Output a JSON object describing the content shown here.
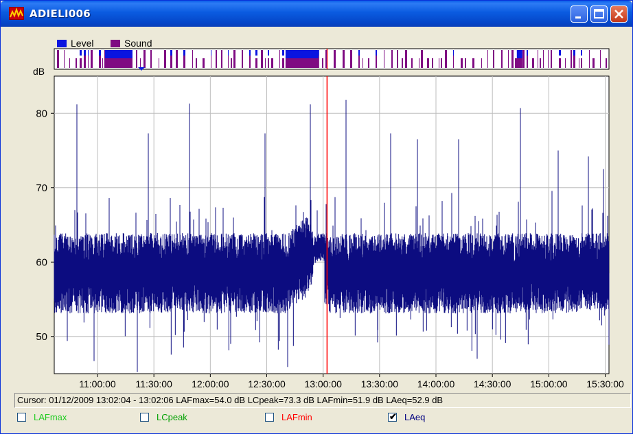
{
  "window": {
    "title": "ADIELI006"
  },
  "legend": {
    "level": "Level",
    "sound": "Sound"
  },
  "colors": {
    "level": "#0A14E0",
    "sound": "#7F0A82",
    "trace": "#0C0C80",
    "cursor": "#FF0000",
    "grid": "#BDBDBD"
  },
  "chart_data": {
    "type": "line",
    "ylabel": "dB",
    "ylim": [
      45,
      85
    ],
    "yticks": [
      50,
      60,
      70,
      80
    ],
    "xlim": [
      "10:37:00",
      "15:32:00"
    ],
    "xticks": [
      "11:00:00",
      "11:30:00",
      "12:00:00",
      "12:30:00",
      "13:00:00",
      "13:30:00",
      "14:00:00",
      "14:30:00",
      "15:00:00",
      "15:30:00"
    ],
    "cursor": "13:02:05",
    "series": [
      {
        "name": "LAeq",
        "baseline": 58.5,
        "peaks": [
          {
            "t": "10:49:00",
            "v": 81.2
          },
          {
            "t": "11:27:00",
            "v": 77.3
          },
          {
            "t": "11:49:00",
            "v": 81.3
          },
          {
            "t": "12:29:00",
            "v": 77.3
          },
          {
            "t": "12:53:00",
            "v": 81.2
          },
          {
            "t": "13:12:00",
            "v": 81.8
          },
          {
            "t": "13:36:00",
            "v": 77.3
          },
          {
            "t": "13:50:00",
            "v": 76.5
          },
          {
            "t": "14:12:00",
            "v": 76.5
          },
          {
            "t": "14:45:00",
            "v": 80.7
          },
          {
            "t": "15:05:00",
            "v": 75.0
          },
          {
            "t": "15:21:00",
            "v": 74.2
          },
          {
            "t": "15:29:00",
            "v": 72.5
          }
        ],
        "dips": [
          {
            "t": "10:44:00",
            "v": 49.4
          },
          {
            "t": "10:58:00",
            "v": 46.7
          },
          {
            "t": "11:21:00",
            "v": 45.2
          },
          {
            "t": "12:11:00",
            "v": 49.0
          },
          {
            "t": "12:41:00",
            "v": 45.9
          },
          {
            "t": "13:29:00",
            "v": 49.2
          },
          {
            "t": "14:22:00",
            "v": 47.0
          },
          {
            "t": "15:32:00",
            "v": 48.9
          }
        ]
      }
    ]
  },
  "status": {
    "cursor_text": "Cursor: 01/12/2009 13:02:04 - 13:02:06  LAFmax=54.0 dB  LCpeak=73.3 dB  LAFmin=51.9 dB  LAeq=52.9 dB"
  },
  "checkboxes": [
    {
      "label": "LAFmax",
      "checked": false,
      "color": "#22CC22"
    },
    {
      "label": "LCpeak",
      "checked": false,
      "color": "#00A000"
    },
    {
      "label": "LAFmin",
      "checked": false,
      "color": "#FF0000"
    },
    {
      "label": "LAeq",
      "checked": true,
      "color": "#000080"
    }
  ]
}
